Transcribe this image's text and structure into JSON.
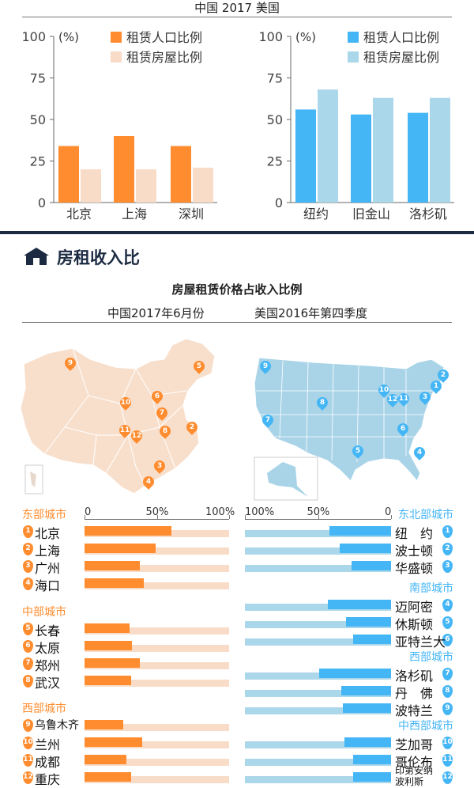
{
  "colors": {
    "cn_pop": "#ff8c2e",
    "cn_house": "#f8dcc8",
    "us_pop": "#45b6f5",
    "us_house": "#abd7ea",
    "cn_cat": "#ff8c2e",
    "us_cat": "#45b6f5",
    "dark": "#1c2a42"
  },
  "top": {
    "header": "中国   2017   美国"
  },
  "chart_data": [
    {
      "type": "bar",
      "title": "",
      "ylabel": "(%)",
      "ylim": [
        0,
        100
      ],
      "yticks": [
        0,
        25,
        50,
        75,
        100
      ],
      "categories": [
        "北京",
        "上海",
        "深圳"
      ],
      "series": [
        {
          "name": "租赁人口比例",
          "values": [
            34,
            40,
            34
          ]
        },
        {
          "name": "租赁房屋比例",
          "values": [
            20,
            20,
            21
          ]
        }
      ]
    },
    {
      "type": "bar",
      "title": "",
      "ylabel": "(%)",
      "ylim": [
        0,
        100
      ],
      "yticks": [
        0,
        25,
        50,
        75,
        100
      ],
      "categories": [
        "纽约",
        "旧金山",
        "洛杉矶"
      ],
      "series": [
        {
          "name": "租赁人口比例",
          "values": [
            56,
            53,
            54
          ]
        },
        {
          "name": "租赁房屋比例",
          "values": [
            68,
            63,
            63
          ]
        }
      ]
    },
    {
      "type": "bar",
      "title": "房屋租赁价格占收入比例 — 中国2017年6月份",
      "xlim": [
        0,
        100
      ],
      "xticks": [
        "0",
        "50%",
        "100%"
      ],
      "groups": [
        {
          "name": "东部城市",
          "cities": [
            {
              "n": "1",
              "label": "北京",
              "value": 60
            },
            {
              "n": "2",
              "label": "上海",
              "value": 49
            },
            {
              "n": "3",
              "label": "广州",
              "value": 38
            },
            {
              "n": "4",
              "label": "海口",
              "value": 41
            }
          ]
        },
        {
          "name": "中部城市",
          "cities": [
            {
              "n": "5",
              "label": "长春",
              "value": 31
            },
            {
              "n": "6",
              "label": "太原",
              "value": 33
            },
            {
              "n": "7",
              "label": "郑州",
              "value": 38
            },
            {
              "n": "8",
              "label": "武汉",
              "value": 32
            }
          ]
        },
        {
          "name": "西部城市",
          "cities": [
            {
              "n": "9",
              "label": "乌鲁木齐",
              "value": 27
            },
            {
              "n": "10",
              "label": "兰州",
              "value": 40
            },
            {
              "n": "11",
              "label": "成都",
              "value": 29
            },
            {
              "n": "12",
              "label": "重庆",
              "value": 32
            }
          ]
        }
      ]
    },
    {
      "type": "bar",
      "title": "房屋租赁价格占收入比例 — 美国2016年第四季度",
      "xlim": [
        0,
        100
      ],
      "xticks": [
        "100%",
        "50%",
        "0"
      ],
      "groups": [
        {
          "name": "东北部城市",
          "cities": [
            {
              "n": "1",
              "label": "纽　约",
              "value": 42
            },
            {
              "n": "2",
              "label": "波士顿",
              "value": 35
            },
            {
              "n": "3",
              "label": "华盛顿",
              "value": 27
            }
          ]
        },
        {
          "name": "南部城市",
          "cities": [
            {
              "n": "4",
              "label": "迈阿密",
              "value": 43
            },
            {
              "n": "5",
              "label": "休斯顿",
              "value": 31
            },
            {
              "n": "6",
              "label": "亚特兰大",
              "value": 26
            }
          ]
        },
        {
          "name": "西部城市",
          "cities": [
            {
              "n": "7",
              "label": "洛杉矶",
              "value": 49
            },
            {
              "n": "8",
              "label": "丹　佛",
              "value": 34
            },
            {
              "n": "9",
              "label": "波特兰",
              "value": 33
            }
          ]
        },
        {
          "name": "中西部城市",
          "cities": [
            {
              "n": "10",
              "label": "芝加哥",
              "value": 32
            },
            {
              "n": "11",
              "label": "哥伦布",
              "value": 26
            },
            {
              "n": "12",
              "label": "印第安纳 波利斯",
              "value": 26
            }
          ]
        }
      ]
    }
  ],
  "section": {
    "title": "房租收入比",
    "subtitle": "房屋租赁价格占收入比例",
    "cn_period": "中国2017年6月份",
    "us_period": "美国2016年第四季度"
  },
  "cn_map_pins": [
    "9",
    "5",
    "6",
    "10",
    "7",
    "11",
    "12",
    "8",
    "2",
    "3",
    "4"
  ],
  "us_map_pins": [
    "9",
    "8",
    "7",
    "5",
    "10",
    "12",
    "11",
    "3",
    "1",
    "2",
    "6",
    "4"
  ]
}
